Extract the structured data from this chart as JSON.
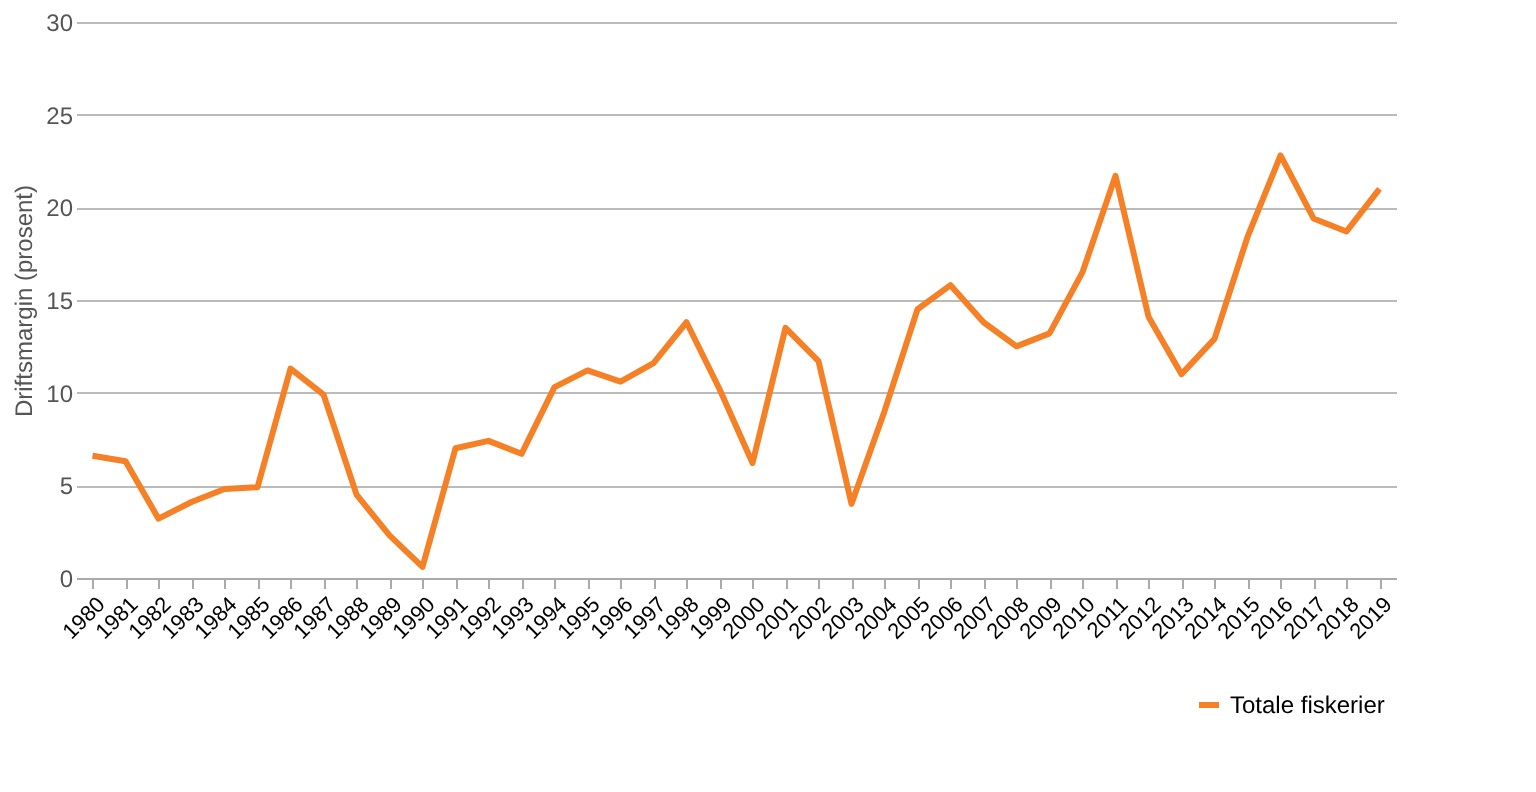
{
  "chart_data": {
    "type": "line",
    "ylabel": "Driftsmargin (prosent)",
    "categories": [
      "1980",
      "1981",
      "1982",
      "1983",
      "1984",
      "1985",
      "1986",
      "1987",
      "1988",
      "1989",
      "1990",
      "1991",
      "1992",
      "1993",
      "1994",
      "1995",
      "1996",
      "1997",
      "1998",
      "1999",
      "2000",
      "2001",
      "2002",
      "2003",
      "2004",
      "2005",
      "2006",
      "2007",
      "2008",
      "2009",
      "2010",
      "2011",
      "2012",
      "2013",
      "2014",
      "2015",
      "2016",
      "2017",
      "2018",
      "2019"
    ],
    "series": [
      {
        "name": "Totale fiskerier",
        "color": "#f58026",
        "values": [
          6.6,
          6.3,
          3.2,
          4.1,
          4.8,
          4.9,
          11.3,
          9.9,
          4.5,
          2.3,
          0.6,
          7.0,
          7.4,
          6.7,
          10.3,
          11.2,
          10.6,
          11.6,
          13.8,
          10.2,
          6.2,
          13.5,
          11.7,
          4.0,
          9.0,
          14.5,
          15.8,
          13.8,
          12.5,
          13.2,
          16.5,
          21.7,
          14.1,
          11.0,
          12.9,
          18.4,
          22.8,
          19.4,
          18.7,
          21.0
        ]
      }
    ],
    "ylim": [
      0,
      30
    ],
    "yticks": [
      0,
      5,
      10,
      15,
      20,
      25,
      30
    ],
    "grid": "y",
    "legend": "bottom right",
    "marker": "none",
    "line_style": "solid"
  }
}
